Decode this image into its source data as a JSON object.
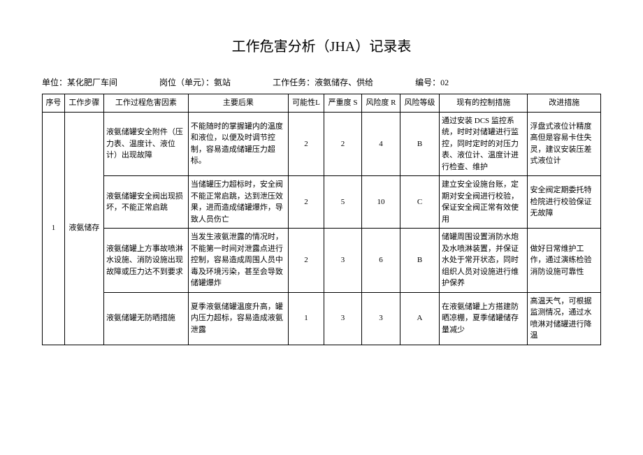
{
  "title": "工作危害分析（JHA）记录表",
  "info": {
    "unit_label": "单位：",
    "unit_value": "某化肥厂车间",
    "post_label": "岗位（单元）：",
    "post_value": "氨站",
    "task_label": "工作任务：",
    "task_value": "液氨储存、供给",
    "no_label": "编号：",
    "no_value": "02"
  },
  "headers": {
    "seq": "序号",
    "step": "工作步骤",
    "hazard": "工作过程危害因素",
    "consequence": "主要后果",
    "l": "可能性L",
    "s": "严重度 S",
    "r": "风险度 R",
    "level": "风险等级",
    "control": "现有的控制措施",
    "improve": "改进措施"
  },
  "group": {
    "seq": "1",
    "step": "液氨储存"
  },
  "rows": [
    {
      "hazard": "液氨储罐安全附件（压力表、温度计、液位计）出现故障",
      "consequence": "不能随时的掌握罐内的温度和液位，以便及时调节控制，容易造成储罐压力超标。",
      "l": "2",
      "s": "2",
      "r": "4",
      "level": "B",
      "control": "通过安装 DCS 监控系统，时时对储罐进行监控，同时定时的对压力表、液位计、温度计进行检查、维护",
      "improve": "浮盘式液位计精度高但是容易卡住失灵，建议安装压差式液位计"
    },
    {
      "hazard": "液氨储罐安全阀出现损坏，不能正常启跳",
      "consequence": "当储罐压力超标时，安全阀不能正常启跳，达到泄压效果，进而造成储罐爆炸，导致人员伤亡",
      "l": "2",
      "s": "5",
      "r": "10",
      "level": "C",
      "control": "建立安全设施台账，定期对安全阀进行校验，保证安全阀正常有效使用",
      "improve": "安全阀定期委托特检院进行校验保证无故障"
    },
    {
      "hazard": "液氨储罐上方事故喷淋水设施、消防设施出现故障或压力达不到要求",
      "consequence": "当发生液氨泄露的情况时，不能第一时间对泄露点进行控制，容易造成周围人员中毒及环境污染，甚至会导致储罐爆炸",
      "l": "2",
      "s": "3",
      "r": "6",
      "level": "B",
      "control": "储罐周围设置消防水炮及水喷淋装置，并保证水处于常开状态，同时组织人员对设施进行维护保养",
      "improve": "做好日常维护工作，通过演练检验消防设施可靠性"
    },
    {
      "hazard": "液氨储罐无防晒措施",
      "consequence": "夏季液氨储罐温度升高，罐内压力超标，容易造成液氨泄露",
      "l": "1",
      "s": "3",
      "r": "3",
      "level": "A",
      "control": "在液氨储罐上方搭建防晒凉棚，夏季储罐储存量减少",
      "improve": "高温天气，可根据监测情况，通过水喷淋对储罐进行降温"
    }
  ]
}
